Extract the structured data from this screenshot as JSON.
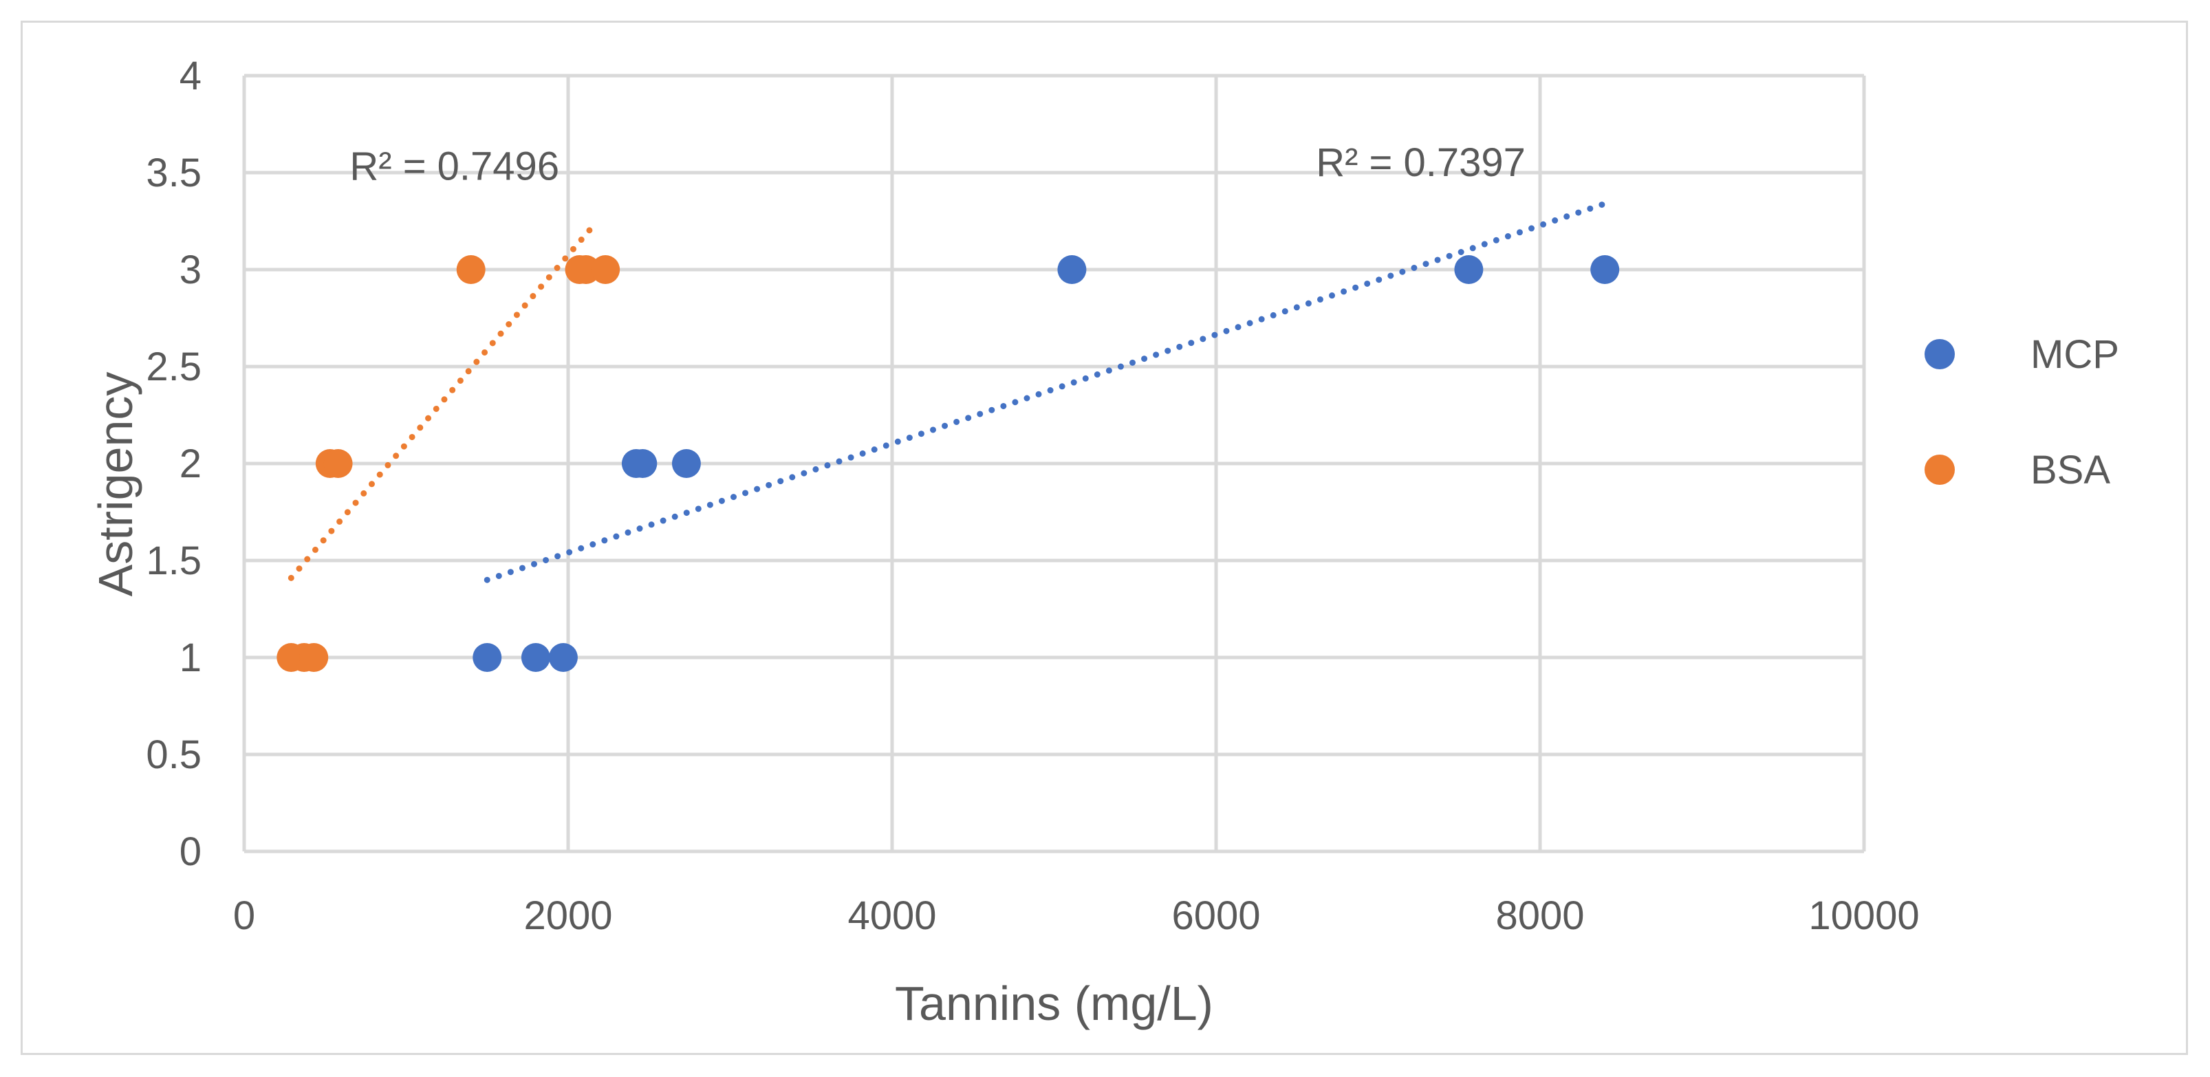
{
  "chart_data": {
    "type": "scatter",
    "title": "",
    "xlabel": "Tannins (mg/L)",
    "ylabel": "Astrigency",
    "xlim": [
      0,
      10000
    ],
    "ylim": [
      0,
      4
    ],
    "xticks": [
      0,
      2000,
      4000,
      6000,
      8000,
      10000
    ],
    "yticks": [
      0,
      0.5,
      1,
      1.5,
      2,
      2.5,
      3,
      3.5,
      4
    ],
    "grid": true,
    "legend_position": "right",
    "series": [
      {
        "name": "MCP",
        "color": "#4472c4",
        "points": [
          {
            "x": 1500,
            "y": 1
          },
          {
            "x": 1800,
            "y": 1
          },
          {
            "x": 1970,
            "y": 1
          },
          {
            "x": 2420,
            "y": 2
          },
          {
            "x": 2460,
            "y": 2
          },
          {
            "x": 2730,
            "y": 2
          },
          {
            "x": 5110,
            "y": 3
          },
          {
            "x": 7560,
            "y": 3
          },
          {
            "x": 8400,
            "y": 3
          }
        ],
        "trendline": {
          "type": "linear",
          "x_start": 1500,
          "y_start": 1.4,
          "x_end": 8400,
          "y_end": 3.34,
          "r2_text": "R² = 0.7397"
        }
      },
      {
        "name": "BSA",
        "color": "#ed7d31",
        "points": [
          {
            "x": 290,
            "y": 1
          },
          {
            "x": 370,
            "y": 1
          },
          {
            "x": 430,
            "y": 1
          },
          {
            "x": 530,
            "y": 2
          },
          {
            "x": 580,
            "y": 2
          },
          {
            "x": 1400,
            "y": 3
          },
          {
            "x": 2070,
            "y": 3
          },
          {
            "x": 2110,
            "y": 3
          },
          {
            "x": 2230,
            "y": 3
          }
        ],
        "trendline": {
          "type": "linear",
          "x_start": 290,
          "y_start": 1.41,
          "x_end": 2180,
          "y_end": 3.25,
          "r2_text": "R² = 0.7496"
        }
      }
    ]
  }
}
